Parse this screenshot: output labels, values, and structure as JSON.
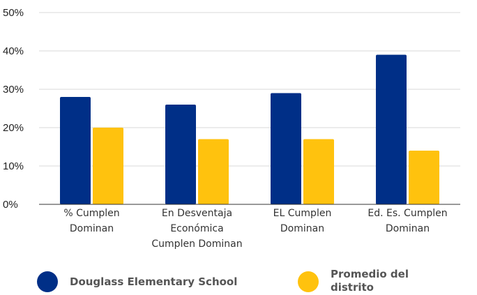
{
  "chart_data": {
    "type": "bar",
    "title": "",
    "xlabel": "",
    "ylabel": "",
    "ylim": [
      0,
      50
    ],
    "yticks": [
      0,
      10,
      20,
      30,
      40,
      50
    ],
    "ytick_labels": [
      "0%",
      "10%",
      "20%",
      "30%",
      "40%",
      "50%"
    ],
    "grid": true,
    "legend": "bottom",
    "categories": [
      [
        "% Cumplen",
        "Dominan"
      ],
      [
        "En Desventaja",
        "Económica",
        "Cumplen Dominan"
      ],
      [
        "EL Cumplen",
        "Dominan"
      ],
      [
        "Ed. Es. Cumplen",
        "Dominan"
      ]
    ],
    "series": [
      {
        "name": "Douglass Elementary School",
        "legend_lines": [
          "Douglass Elementary School"
        ],
        "color": "#002F87",
        "values": [
          28,
          26,
          29,
          39
        ]
      },
      {
        "name": "Promedio del distrito",
        "legend_lines": [
          "Promedio del",
          "distrito"
        ],
        "color": "#FFC20E",
        "values": [
          20,
          17,
          17,
          14
        ]
      }
    ]
  }
}
